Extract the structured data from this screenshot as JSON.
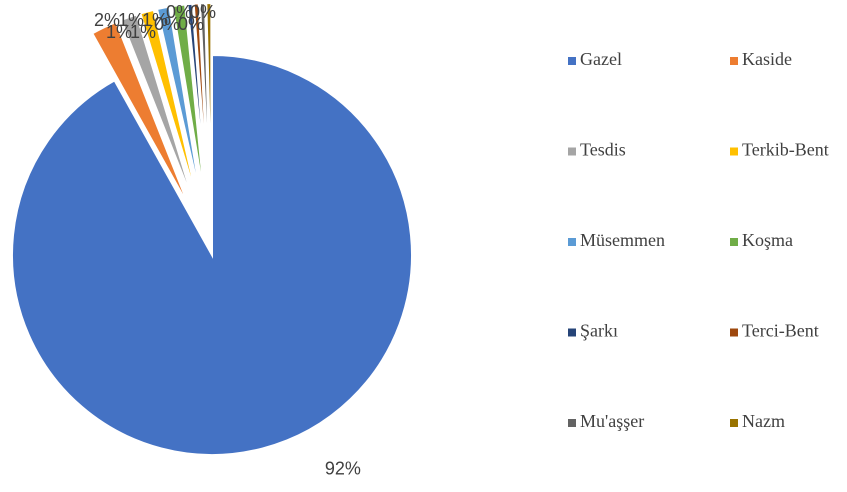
{
  "chart_data": {
    "type": "pie",
    "categories": [
      "Gazel",
      "Kaside",
      "Tesdis",
      "Terkib-Bent",
      "Müsemmen",
      "Koşma",
      "Şarkı",
      "Terci-Bent",
      "Mu'aşşer",
      "Nazm"
    ],
    "values": [
      91.9,
      2.1,
      1.3,
      1.1,
      1.0,
      1.0,
      0.4,
      0.4,
      0.4,
      0.4
    ],
    "value_labels": [
      "92%",
      "2%",
      "1%",
      "1%",
      "1%",
      "1%",
      "0%",
      "0%",
      "0%",
      "0%"
    ],
    "colors": [
      "#4472c4",
      "#ed7d31",
      "#a5a5a5",
      "#ffc000",
      "#5b9bd5",
      "#70ad47",
      "#264478",
      "#9e480e",
      "#636363",
      "#997300"
    ],
    "legend": "right"
  }
}
